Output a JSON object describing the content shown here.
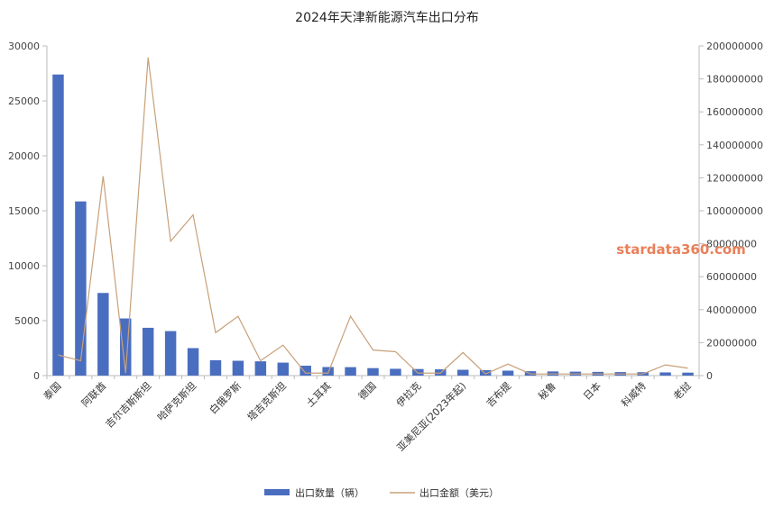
{
  "chart_data": {
    "type": "bar",
    "title": "2024年天津新能源汽车出口分布",
    "categories": [
      "泰国",
      "",
      "阿联酋",
      "",
      "吉尔吉斯斯坦",
      "",
      "哈萨克斯坦",
      "",
      "白俄罗斯",
      "",
      "塔吉克斯坦",
      "",
      "土耳其",
      "",
      "德国",
      "",
      "伊拉克",
      "",
      "亚美尼亚(2023年起)",
      "",
      "吉布提",
      "",
      "秘鲁",
      "",
      "日本",
      "",
      "科威特",
      "",
      "老挝"
    ],
    "series": [
      {
        "name": "出口数量（辆）",
        "type": "bar",
        "axis": "left",
        "color": "#4a6ebf",
        "values": [
          27400,
          15850,
          7520,
          5200,
          4350,
          4050,
          2500,
          1400,
          1350,
          1300,
          1180,
          900,
          780,
          770,
          680,
          620,
          600,
          570,
          530,
          500,
          450,
          400,
          380,
          360,
          340,
          320,
          310,
          290,
          270
        ]
      },
      {
        "name": "出口金额（美元）",
        "type": "line",
        "axis": "right",
        "color": "#c8a07a",
        "values": [
          12500000,
          9000000,
          121000000,
          1500000,
          193000000,
          81500000,
          97500000,
          26000000,
          36000000,
          9000000,
          18500000,
          1500000,
          1500000,
          36000000,
          15500000,
          14500000,
          1500000,
          1500000,
          14000000,
          1000000,
          7000000,
          1000000,
          1000000,
          1000000,
          1000000,
          1000000,
          1000000,
          6500000,
          4500000
        ]
      }
    ],
    "yaxis_left": {
      "min": 0,
      "max": 30000,
      "ticks": [
        0,
        5000,
        10000,
        15000,
        20000,
        25000,
        30000
      ]
    },
    "yaxis_right": {
      "min": 0,
      "max": 200000000,
      "ticks": [
        0,
        20000000,
        40000000,
        60000000,
        80000000,
        100000000,
        120000000,
        140000000,
        160000000,
        180000000,
        200000000
      ]
    },
    "grid": false,
    "legend": "bottom-center"
  },
  "watermark": "stardata360.com"
}
